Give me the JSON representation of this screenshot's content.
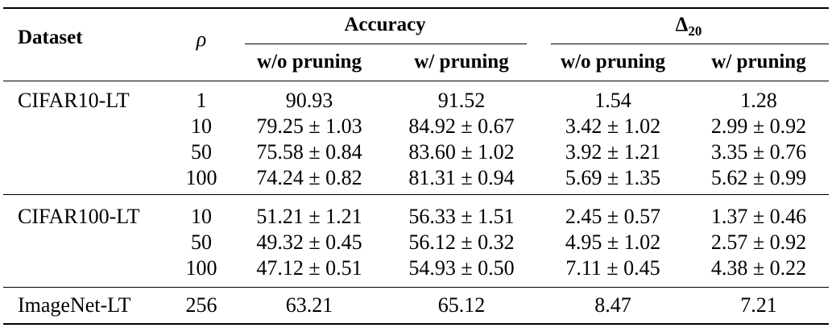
{
  "table": {
    "headers": {
      "dataset": "Dataset",
      "rho": "ρ",
      "accuracy": "Accuracy",
      "delta_symbol": "Δ",
      "delta_sub": "20",
      "wo_pruning_acc": "w/o pruning",
      "w_pruning_acc": "w/ pruning",
      "wo_pruning_delta": "w/o pruning",
      "w_pruning_delta": "w/ pruning"
    },
    "groups": [
      {
        "dataset": "CIFAR10-LT",
        "rows": [
          {
            "rho": "1",
            "acc_wo": "90.93",
            "acc_w": "91.52",
            "d_wo": "1.54",
            "d_w": "1.28"
          },
          {
            "rho": "10",
            "acc_wo": "79.25 ± 1.03",
            "acc_w": "84.92 ± 0.67",
            "d_wo": "3.42 ± 1.02",
            "d_w": "2.99 ± 0.92"
          },
          {
            "rho": "50",
            "acc_wo": "75.58 ± 0.84",
            "acc_w": "83.60 ± 1.02",
            "d_wo": "3.92 ± 1.21",
            "d_w": "3.35 ± 0.76"
          },
          {
            "rho": "100",
            "acc_wo": "74.24 ± 0.82",
            "acc_w": "81.31 ± 0.94",
            "d_wo": "5.69 ± 1.35",
            "d_w": "5.62 ± 0.99"
          }
        ]
      },
      {
        "dataset": "CIFAR100-LT",
        "rows": [
          {
            "rho": "10",
            "acc_wo": "51.21 ± 1.21",
            "acc_w": "56.33 ± 1.51",
            "d_wo": "2.45 ± 0.57",
            "d_w": "1.37 ± 0.46"
          },
          {
            "rho": "50",
            "acc_wo": "49.32 ± 0.45",
            "acc_w": "56.12 ± 0.32",
            "d_wo": "4.95 ± 1.02",
            "d_w": "2.57 ± 0.92"
          },
          {
            "rho": "100",
            "acc_wo": "47.12 ± 0.51",
            "acc_w": "54.93 ± 0.50",
            "d_wo": "7.11 ± 0.45",
            "d_w": "4.38 ± 0.22"
          }
        ]
      },
      {
        "dataset": "ImageNet-LT",
        "rows": [
          {
            "rho": "256",
            "acc_wo": "63.21",
            "acc_w": "65.12",
            "d_wo": "8.47",
            "d_w": "7.21"
          }
        ]
      }
    ]
  }
}
